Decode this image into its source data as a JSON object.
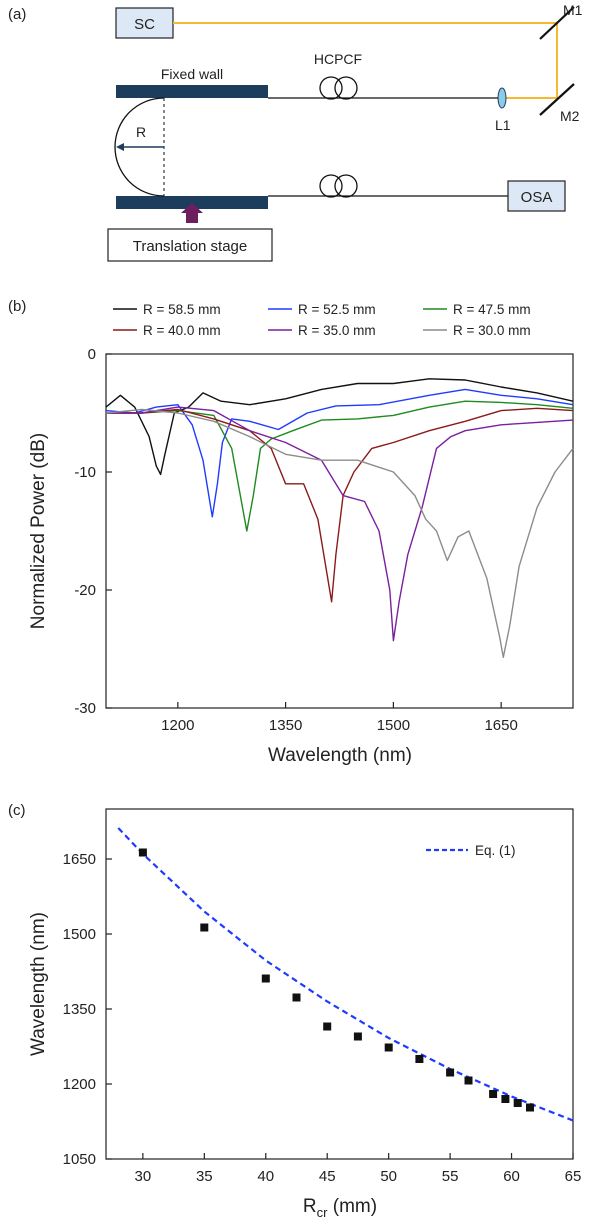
{
  "panels": {
    "a": "(a)",
    "b": "(b)",
    "c": "(c)"
  },
  "schematic": {
    "sc": "SC",
    "m1": "M1",
    "m2": "M2",
    "fixed_wall": "Fixed wall",
    "hcpcf": "HCPCF",
    "r": "R",
    "l1": "L1",
    "osa": "OSA",
    "translation_stage": "Translation stage",
    "colors": {
      "beam": "#f5b82e",
      "wall": "#1c3d5c",
      "box_fill": "#dce8f5",
      "stage_arrow": "#6b1f5c",
      "lens": "#8ccbe8"
    }
  },
  "chart_data": [
    {
      "type": "line",
      "xlabel": "Wavelength (nm)",
      "ylabel": "Normalized Power (dB)",
      "xlim": [
        1100,
        1750
      ],
      "ylim": [
        -30,
        0
      ],
      "xticks": [
        1200,
        1350,
        1500,
        1650
      ],
      "yticks": [
        0,
        -10,
        -20,
        -30
      ],
      "legend_position": "top",
      "series": [
        {
          "name": "R = 58.5 mm",
          "color": "#111111",
          "points": [
            [
              1100,
              -4.5
            ],
            [
              1120,
              -3.5
            ],
            [
              1140,
              -4.5
            ],
            [
              1160,
              -7
            ],
            [
              1170,
              -9.5
            ],
            [
              1176,
              -10.2
            ],
            [
              1182,
              -8.5
            ],
            [
              1195,
              -5
            ],
            [
              1215,
              -4.5
            ],
            [
              1235,
              -3.3
            ],
            [
              1260,
              -4
            ],
            [
              1300,
              -4.3
            ],
            [
              1350,
              -3.8
            ],
            [
              1400,
              -3
            ],
            [
              1450,
              -2.5
            ],
            [
              1500,
              -2.5
            ],
            [
              1550,
              -2.1
            ],
            [
              1600,
              -2.2
            ],
            [
              1650,
              -2.8
            ],
            [
              1700,
              -3.3
            ],
            [
              1750,
              -4
            ]
          ]
        },
        {
          "name": "R = 52.5 mm",
          "color": "#1f3bff",
          "points": [
            [
              1100,
              -4.8
            ],
            [
              1140,
              -5
            ],
            [
              1170,
              -4.5
            ],
            [
              1200,
              -4.3
            ],
            [
              1220,
              -6
            ],
            [
              1235,
              -9
            ],
            [
              1248,
              -13.8
            ],
            [
              1255,
              -11
            ],
            [
              1262,
              -7.5
            ],
            [
              1275,
              -5.5
            ],
            [
              1300,
              -5.7
            ],
            [
              1340,
              -6.4
            ],
            [
              1380,
              -5
            ],
            [
              1420,
              -4.4
            ],
            [
              1480,
              -4.3
            ],
            [
              1550,
              -3.5
            ],
            [
              1600,
              -3
            ],
            [
              1650,
              -3.5
            ],
            [
              1700,
              -3.8
            ],
            [
              1750,
              -4.3
            ]
          ]
        },
        {
          "name": "R = 47.5 mm",
          "color": "#1f8a1f",
          "points": [
            [
              1100,
              -5
            ],
            [
              1150,
              -5
            ],
            [
              1200,
              -4.8
            ],
            [
              1250,
              -5.2
            ],
            [
              1275,
              -8
            ],
            [
              1290,
              -13
            ],
            [
              1296,
              -15
            ],
            [
              1305,
              -12
            ],
            [
              1315,
              -8
            ],
            [
              1330,
              -7.2
            ],
            [
              1360,
              -6.5
            ],
            [
              1400,
              -5.6
            ],
            [
              1450,
              -5.5
            ],
            [
              1500,
              -5.2
            ],
            [
              1550,
              -4.5
            ],
            [
              1600,
              -4
            ],
            [
              1650,
              -4.1
            ],
            [
              1700,
              -4.3
            ],
            [
              1750,
              -4.6
            ]
          ]
        },
        {
          "name": "R = 40.0 mm",
          "color": "#8b1a1a",
          "points": [
            [
              1100,
              -5
            ],
            [
              1150,
              -5
            ],
            [
              1200,
              -4.7
            ],
            [
              1250,
              -5.5
            ],
            [
              1300,
              -6.5
            ],
            [
              1330,
              -8
            ],
            [
              1350,
              -11
            ],
            [
              1375,
              -11
            ],
            [
              1395,
              -14
            ],
            [
              1410,
              -19.5
            ],
            [
              1414,
              -21
            ],
            [
              1420,
              -17
            ],
            [
              1430,
              -12
            ],
            [
              1445,
              -10
            ],
            [
              1470,
              -8
            ],
            [
              1500,
              -7.5
            ],
            [
              1550,
              -6.5
            ],
            [
              1600,
              -5.7
            ],
            [
              1650,
              -4.8
            ],
            [
              1700,
              -4.6
            ],
            [
              1750,
              -4.8
            ]
          ]
        },
        {
          "name": "R = 35.0 mm",
          "color": "#7a1fa0",
          "points": [
            [
              1100,
              -5
            ],
            [
              1150,
              -5
            ],
            [
              1200,
              -4.5
            ],
            [
              1250,
              -4.8
            ],
            [
              1300,
              -6.5
            ],
            [
              1350,
              -7.5
            ],
            [
              1400,
              -9
            ],
            [
              1430,
              -12
            ],
            [
              1460,
              -12.5
            ],
            [
              1480,
              -15
            ],
            [
              1495,
              -20
            ],
            [
              1500,
              -24.3
            ],
            [
              1508,
              -21
            ],
            [
              1520,
              -17
            ],
            [
              1540,
              -13
            ],
            [
              1560,
              -8
            ],
            [
              1580,
              -7
            ],
            [
              1600,
              -6.5
            ],
            [
              1650,
              -6
            ],
            [
              1700,
              -5.8
            ],
            [
              1750,
              -5.6
            ]
          ]
        },
        {
          "name": "R = 30.0 mm",
          "color": "#8c8c8c",
          "points": [
            [
              1100,
              -5
            ],
            [
              1150,
              -4.7
            ],
            [
              1200,
              -5
            ],
            [
              1250,
              -5.7
            ],
            [
              1300,
              -7
            ],
            [
              1350,
              -8.5
            ],
            [
              1400,
              -9
            ],
            [
              1450,
              -9
            ],
            [
              1500,
              -10
            ],
            [
              1530,
              -12
            ],
            [
              1545,
              -14
            ],
            [
              1560,
              -15
            ],
            [
              1575,
              -17.5
            ],
            [
              1590,
              -15.5
            ],
            [
              1605,
              -15
            ],
            [
              1630,
              -19
            ],
            [
              1648,
              -24
            ],
            [
              1653,
              -25.7
            ],
            [
              1662,
              -23
            ],
            [
              1675,
              -18
            ],
            [
              1700,
              -13
            ],
            [
              1725,
              -10
            ],
            [
              1750,
              -8
            ]
          ]
        }
      ]
    },
    {
      "type": "scatter",
      "xlabel_main": "R",
      "xlabel_sub": "cr",
      "xlabel_unit": " (mm)",
      "ylabel": "Wavelength (nm)",
      "xlim": [
        27,
        65
      ],
      "ylim": [
        1050,
        1750
      ],
      "xticks": [
        30,
        35,
        40,
        45,
        50,
        55,
        60,
        65
      ],
      "yticks": [
        1050,
        1200,
        1350,
        1500,
        1650
      ],
      "legend_position": "top-right",
      "series": [
        {
          "name": "",
          "color": "#111111",
          "points": [
            [
              30,
              1663
            ],
            [
              35,
              1513
            ],
            [
              40,
              1411
            ],
            [
              42.5,
              1373
            ],
            [
              45,
              1315
            ],
            [
              47.5,
              1295
            ],
            [
              50,
              1273
            ],
            [
              52.5,
              1250
            ],
            [
              55,
              1223
            ],
            [
              56.5,
              1207
            ],
            [
              58.5,
              1180
            ],
            [
              59.5,
              1170
            ],
            [
              60.5,
              1162
            ],
            [
              61.5,
              1153
            ]
          ]
        },
        {
          "name": "Eq. (1)",
          "color": "#1f3bff",
          "style": "dashed",
          "points": [
            [
              28,
              1712
            ],
            [
              30,
              1660
            ],
            [
              35,
              1545
            ],
            [
              40,
              1447
            ],
            [
              45,
              1365
            ],
            [
              50,
              1292
            ],
            [
              55,
              1230
            ],
            [
              60,
              1175
            ],
            [
              65,
              1127
            ]
          ]
        }
      ]
    }
  ]
}
